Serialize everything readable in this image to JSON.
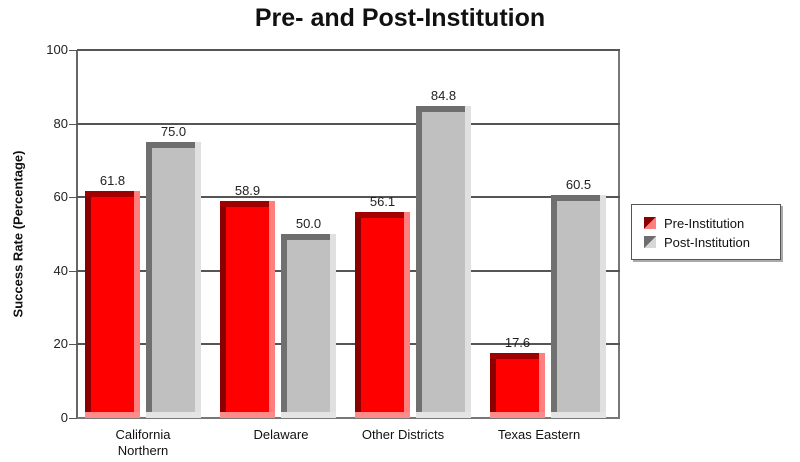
{
  "chart_data": {
    "type": "bar",
    "title": "Pre- and Post-Institution",
    "xlabel": "",
    "ylabel": "Success Rate (Percentage)",
    "ylim": [
      0,
      100
    ],
    "yticks": [
      0,
      20,
      40,
      60,
      80,
      100
    ],
    "grid": true,
    "legend_position": "right",
    "categories": [
      "California Northern",
      "Delaware",
      "Other Districts",
      "Texas Eastern"
    ],
    "series": [
      {
        "name": "Pre-Institution",
        "color": "#ff0000",
        "values": [
          61.8,
          58.9,
          56.1,
          17.6
        ]
      },
      {
        "name": "Post-Institution",
        "color": "#c0c0c0",
        "values": [
          75.0,
          50.0,
          84.8,
          60.5
        ]
      }
    ],
    "value_labels": {
      "pre": [
        "61.8",
        "58.9",
        "56.1",
        "17.6"
      ],
      "post": [
        "75.0",
        "50.0",
        "84.8",
        "60.5"
      ]
    },
    "category_labels": [
      [
        "California",
        "Northern"
      ],
      [
        "Delaware"
      ],
      [
        "Other Districts"
      ],
      [
        "Texas Eastern"
      ]
    ]
  }
}
